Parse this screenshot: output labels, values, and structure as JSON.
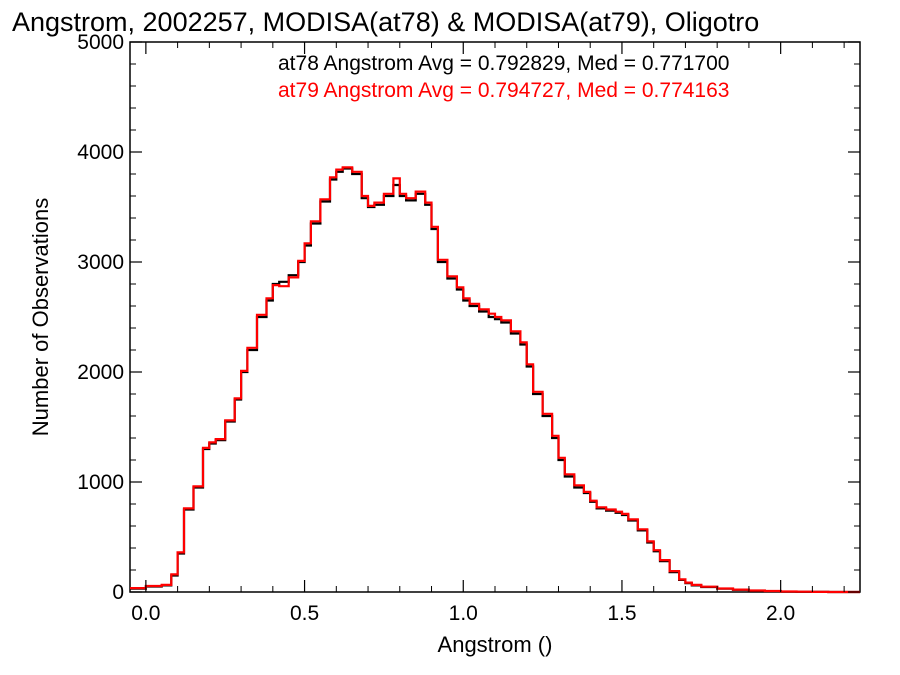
{
  "chart_data": {
    "type": "histogram-step",
    "title": "Angstrom, 2002257, MODISA(at78) & MODISA(at79), Oligotro",
    "xlabel": "Angstrom ()",
    "ylabel": "Number of Observations",
    "xlim": [
      -0.05,
      2.25
    ],
    "ylim": [
      0,
      5000
    ],
    "xticks": [
      0.0,
      0.5,
      1.0,
      1.5,
      2.0
    ],
    "xtick_labels": [
      "0.0",
      "0.5",
      "1.0",
      "1.5",
      "2.0"
    ],
    "yticks": [
      0,
      1000,
      2000,
      3000,
      4000,
      5000
    ],
    "ytick_labels": [
      "0",
      "1000",
      "2000",
      "3000",
      "4000",
      "5000"
    ],
    "annotations": [
      {
        "text": "at78 Angstrom Avg = 0.792829, Med = 0.771700",
        "color": "#000000"
      },
      {
        "text": "at79 Angstrom Avg = 0.794727, Med = 0.774163",
        "color": "#ff0000"
      }
    ],
    "series": [
      {
        "name": "at78",
        "color": "#000000",
        "x": [
          -0.05,
          0.0,
          0.05,
          0.08,
          0.1,
          0.12,
          0.15,
          0.18,
          0.2,
          0.22,
          0.25,
          0.28,
          0.3,
          0.32,
          0.35,
          0.38,
          0.4,
          0.42,
          0.45,
          0.48,
          0.5,
          0.52,
          0.55,
          0.58,
          0.6,
          0.62,
          0.65,
          0.68,
          0.7,
          0.72,
          0.75,
          0.78,
          0.8,
          0.82,
          0.85,
          0.88,
          0.9,
          0.92,
          0.95,
          0.98,
          1.0,
          1.02,
          1.05,
          1.08,
          1.1,
          1.12,
          1.15,
          1.18,
          1.2,
          1.22,
          1.25,
          1.28,
          1.3,
          1.32,
          1.35,
          1.38,
          1.4,
          1.42,
          1.45,
          1.48,
          1.5,
          1.52,
          1.55,
          1.58,
          1.6,
          1.62,
          1.65,
          1.68,
          1.7,
          1.72,
          1.75,
          1.8,
          1.85,
          1.9,
          1.95,
          2.0,
          2.05,
          2.1,
          2.15,
          2.2,
          2.25
        ],
        "y": [
          30,
          50,
          60,
          150,
          350,
          750,
          950,
          1300,
          1350,
          1380,
          1550,
          1750,
          2000,
          2200,
          2500,
          2650,
          2800,
          2820,
          2880,
          3000,
          3150,
          3350,
          3550,
          3750,
          3820,
          3850,
          3800,
          3580,
          3500,
          3520,
          3600,
          3700,
          3600,
          3560,
          3620,
          3520,
          3300,
          3000,
          2850,
          2750,
          2650,
          2600,
          2550,
          2500,
          2480,
          2450,
          2350,
          2250,
          2050,
          1800,
          1600,
          1400,
          1200,
          1050,
          950,
          900,
          820,
          760,
          740,
          720,
          700,
          650,
          560,
          450,
          370,
          280,
          180,
          110,
          80,
          60,
          45,
          30,
          20,
          12,
          8,
          4,
          2,
          1,
          0,
          0,
          0
        ]
      },
      {
        "name": "at79",
        "color": "#ff0000",
        "x": [
          -0.05,
          0.0,
          0.05,
          0.08,
          0.1,
          0.12,
          0.15,
          0.18,
          0.2,
          0.22,
          0.25,
          0.28,
          0.3,
          0.32,
          0.35,
          0.38,
          0.4,
          0.42,
          0.45,
          0.48,
          0.5,
          0.52,
          0.55,
          0.58,
          0.6,
          0.62,
          0.65,
          0.68,
          0.7,
          0.72,
          0.75,
          0.78,
          0.8,
          0.82,
          0.85,
          0.88,
          0.9,
          0.92,
          0.95,
          0.98,
          1.0,
          1.02,
          1.05,
          1.08,
          1.1,
          1.12,
          1.15,
          1.18,
          1.2,
          1.22,
          1.25,
          1.28,
          1.3,
          1.32,
          1.35,
          1.38,
          1.4,
          1.42,
          1.45,
          1.48,
          1.5,
          1.52,
          1.55,
          1.58,
          1.6,
          1.62,
          1.65,
          1.68,
          1.7,
          1.72,
          1.75,
          1.8,
          1.85,
          1.9,
          1.95,
          2.0,
          2.05,
          2.1,
          2.15,
          2.2,
          2.25
        ],
        "y": [
          35,
          55,
          65,
          160,
          360,
          760,
          960,
          1310,
          1360,
          1390,
          1560,
          1760,
          2010,
          2220,
          2520,
          2670,
          2790,
          2780,
          2860,
          3010,
          3170,
          3370,
          3570,
          3770,
          3840,
          3860,
          3820,
          3600,
          3510,
          3540,
          3620,
          3760,
          3620,
          3580,
          3640,
          3540,
          3320,
          3020,
          2870,
          2770,
          2670,
          2620,
          2570,
          2530,
          2500,
          2470,
          2370,
          2270,
          2070,
          1820,
          1620,
          1420,
          1220,
          1070,
          970,
          910,
          830,
          770,
          750,
          730,
          710,
          660,
          570,
          460,
          380,
          290,
          190,
          115,
          85,
          65,
          48,
          32,
          22,
          14,
          9,
          5,
          3,
          1,
          0,
          0,
          0
        ]
      }
    ]
  }
}
